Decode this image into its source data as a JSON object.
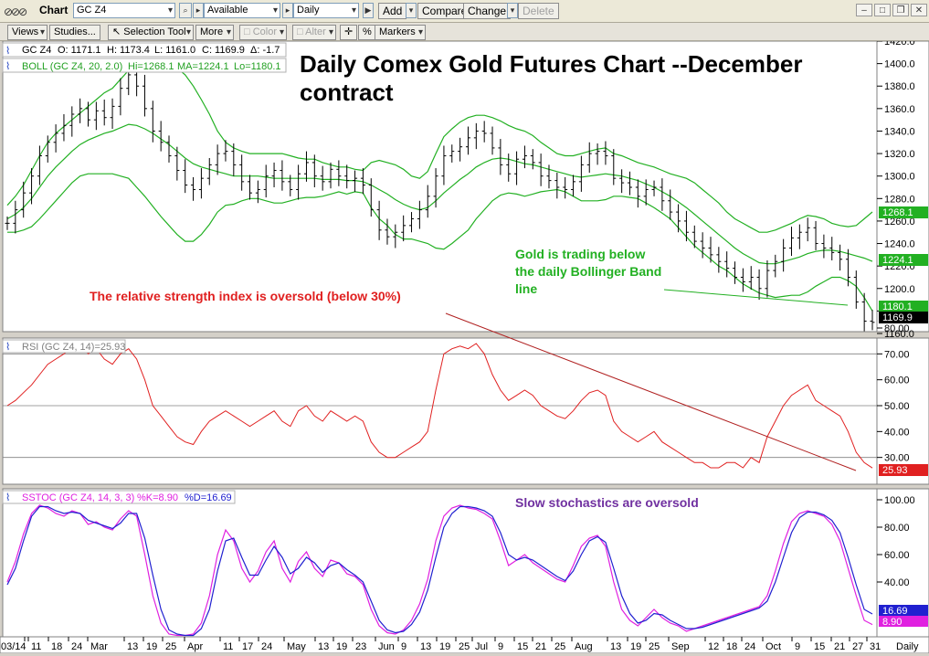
{
  "app": {
    "title": "Chart"
  },
  "toolbar1": {
    "symbol": "GC Z4",
    "available": "Available",
    "period": "Daily",
    "add": "Add",
    "compare": "Compare",
    "change": "Change",
    "delete": "Delete"
  },
  "toolbar2": {
    "views": "Views",
    "studies": "Studies...",
    "selection": "Selection Tool",
    "more": "More",
    "color": "Color",
    "alter": "Alter",
    "percent": "%",
    "markers": "Markers"
  },
  "price_panel": {
    "quote": {
      "symbol": "GC Z4",
      "open": "O: 1171.1",
      "high": "H: 1173.4",
      "low": "L: 1161.0",
      "close": "C: 1169.9",
      "change": "Δ: -1.7"
    },
    "boll": {
      "label": "BOLL (GC Z4, 20, 2.0)",
      "hi": "Hi=1268.1",
      "ma": "MA=1224.1",
      "lo": "Lo=1180.1"
    },
    "title_line1": "Daily Comex Gold Futures Chart --December",
    "title_line2": "contract",
    "note_bb_line1": "Gold is trading below",
    "note_bb_line2": "the daily Bollinger Band",
    "note_bb_line3": "line",
    "note_rsi": "The relative strength index is oversold (below 30%)",
    "last_labels": {
      "upper": "1268.1",
      "mid": "1224.1",
      "lower": "1180.1",
      "close": "1169.9"
    }
  },
  "rsi_panel": {
    "label": "RSI (GC Z4, 14)=25.93",
    "last": "25.93"
  },
  "sstoc_panel": {
    "label": "SSTOC (GC Z4, 14, 3, 3)",
    "k": "%K=8.90",
    "d": "%D=16.69",
    "note": "Slow stochastics are oversold",
    "last_k": "8.90",
    "last_d": "16.69"
  },
  "x_axis": {
    "ticks": [
      "03/14",
      "11",
      "18",
      "24",
      "Mar",
      "13",
      "19",
      "25",
      "Apr",
      "11",
      "17",
      "24",
      "May",
      "13",
      "19",
      "23",
      "Jun",
      "9",
      "13",
      "19",
      "25",
      "Jul",
      "9",
      "15",
      "21",
      "25",
      "Aug",
      "13",
      "19",
      "25",
      "Sep",
      "12",
      "18",
      "24",
      "Oct",
      "9",
      "15",
      "21",
      "27",
      "31",
      "Daily"
    ]
  },
  "colors": {
    "price": "#000000",
    "bands": "#22b022",
    "rsi": "#e02020",
    "k": "#e020e0",
    "d": "#2020d0",
    "note_red": "#e02020",
    "note_green": "#22b022",
    "note_purple": "#7030a0"
  },
  "chart_data": [
    {
      "type": "line",
      "title": "Daily Comex Gold Futures Chart --December contract",
      "x_start": "2014-03-14",
      "x_end": "2014-10-31",
      "ylim": [
        1160,
        1420
      ],
      "yticks": [
        1160,
        1180,
        1200,
        1220,
        1240,
        1260,
        1280,
        1300,
        1320,
        1340,
        1360,
        1380,
        1400,
        1420
      ],
      "series": [
        {
          "name": "GC Z4",
          "values": [
            1258,
            1270,
            1285,
            1300,
            1318,
            1330,
            1338,
            1345,
            1355,
            1360,
            1350,
            1358,
            1352,
            1362,
            1378,
            1390,
            1380,
            1360,
            1340,
            1330,
            1318,
            1305,
            1292,
            1288,
            1298,
            1310,
            1320,
            1322,
            1310,
            1295,
            1285,
            1288,
            1300,
            1305,
            1295,
            1288,
            1302,
            1312,
            1300,
            1295,
            1306,
            1300,
            1296,
            1298,
            1292,
            1270,
            1252,
            1246,
            1250,
            1256,
            1262,
            1270,
            1282,
            1300,
            1318,
            1322,
            1326,
            1334,
            1340,
            1338,
            1325,
            1310,
            1302,
            1315,
            1318,
            1312,
            1300,
            1296,
            1290,
            1288,
            1295,
            1310,
            1320,
            1322,
            1318,
            1298,
            1294,
            1290,
            1282,
            1288,
            1290,
            1278,
            1268,
            1260,
            1250,
            1242,
            1236,
            1230,
            1224,
            1218,
            1210,
            1206,
            1210,
            1200,
            1216,
            1224,
            1236,
            1245,
            1250,
            1254,
            1240,
            1236,
            1232,
            1226,
            1210,
            1188,
            1171,
            1169.9
          ]
        },
        {
          "name": "BOLL upper",
          "values": [
            1274,
            1282,
            1292,
            1305,
            1318,
            1330,
            1338,
            1344,
            1350,
            1356,
            1362,
            1368,
            1374,
            1378,
            1386,
            1394,
            1400,
            1402,
            1403,
            1402,
            1400,
            1396,
            1390,
            1380,
            1368,
            1355,
            1340,
            1330,
            1325,
            1322,
            1320,
            1320,
            1320,
            1320,
            1320,
            1318,
            1316,
            1315,
            1315,
            1312,
            1310,
            1308,
            1308,
            1306,
            1305,
            1312,
            1314,
            1312,
            1310,
            1306,
            1300,
            1298,
            1304,
            1320,
            1335,
            1342,
            1348,
            1352,
            1354,
            1354,
            1352,
            1349,
            1345,
            1342,
            1340,
            1336,
            1330,
            1325,
            1320,
            1318,
            1318,
            1320,
            1322,
            1324,
            1325,
            1320,
            1318,
            1315,
            1312,
            1310,
            1308,
            1305,
            1302,
            1300,
            1298,
            1294,
            1288,
            1282,
            1276,
            1268,
            1262,
            1258,
            1254,
            1250,
            1250,
            1252,
            1255,
            1258,
            1262,
            1265,
            1264,
            1262,
            1258,
            1256,
            1255,
            1256,
            1262,
            1268.1
          ]
        },
        {
          "name": "BOLL MA",
          "values": [
            1262,
            1266,
            1272,
            1280,
            1290,
            1300,
            1308,
            1315,
            1322,
            1328,
            1332,
            1335,
            1338,
            1340,
            1343,
            1346,
            1345,
            1342,
            1338,
            1333,
            1328,
            1322,
            1316,
            1311,
            1308,
            1306,
            1304,
            1302,
            1300,
            1300,
            1300,
            1300,
            1299,
            1298,
            1298,
            1298,
            1298,
            1298,
            1298,
            1297,
            1297,
            1297,
            1296,
            1296,
            1295,
            1292,
            1288,
            1284,
            1279,
            1275,
            1272,
            1270,
            1272,
            1278,
            1285,
            1291,
            1297,
            1302,
            1308,
            1312,
            1315,
            1316,
            1315,
            1313,
            1311,
            1310,
            1308,
            1306,
            1304,
            1302,
            1300,
            1299,
            1300,
            1301,
            1302,
            1301,
            1300,
            1298,
            1296,
            1293,
            1290,
            1286,
            1282,
            1277,
            1272,
            1266,
            1260,
            1254,
            1248,
            1242,
            1236,
            1231,
            1227,
            1223,
            1222,
            1222,
            1224,
            1226,
            1228,
            1231,
            1233,
            1234,
            1234,
            1233,
            1231,
            1229,
            1227,
            1224.1
          ]
        },
        {
          "name": "BOLL lower",
          "values": [
            1250,
            1250,
            1252,
            1255,
            1262,
            1270,
            1278,
            1286,
            1294,
            1300,
            1302,
            1302,
            1302,
            1302,
            1300,
            1298,
            1290,
            1282,
            1273,
            1264,
            1256,
            1248,
            1242,
            1242,
            1248,
            1257,
            1268,
            1274,
            1275,
            1278,
            1280,
            1280,
            1278,
            1276,
            1276,
            1278,
            1280,
            1281,
            1281,
            1282,
            1284,
            1286,
            1284,
            1286,
            1285,
            1272,
            1262,
            1256,
            1248,
            1244,
            1244,
            1242,
            1240,
            1236,
            1235,
            1240,
            1246,
            1252,
            1262,
            1270,
            1278,
            1283,
            1285,
            1284,
            1282,
            1284,
            1286,
            1287,
            1288,
            1286,
            1282,
            1278,
            1278,
            1278,
            1279,
            1282,
            1282,
            1281,
            1280,
            1276,
            1272,
            1267,
            1262,
            1254,
            1246,
            1238,
            1232,
            1226,
            1220,
            1216,
            1210,
            1204,
            1200,
            1196,
            1194,
            1192,
            1193,
            1194,
            1194,
            1197,
            1202,
            1206,
            1210,
            1210,
            1207,
            1202,
            1192,
            1180.1
          ]
        }
      ]
    },
    {
      "type": "line",
      "title": "RSI (GC Z4, 14)=25.93",
      "ylim": [
        20,
        80
      ],
      "yticks": [
        30,
        40,
        50,
        60,
        70,
        80
      ],
      "reference_lines": [
        30,
        50,
        70
      ],
      "series": [
        {
          "name": "RSI",
          "values": [
            50,
            52,
            55,
            58,
            62,
            66,
            68,
            70,
            72,
            74,
            70,
            72,
            68,
            66,
            70,
            72,
            68,
            60,
            50,
            46,
            42,
            38,
            36,
            35,
            40,
            44,
            46,
            48,
            46,
            44,
            42,
            44,
            46,
            48,
            44,
            42,
            48,
            50,
            46,
            44,
            48,
            46,
            44,
            46,
            44,
            36,
            32,
            30,
            30,
            32,
            34,
            36,
            40,
            56,
            70,
            72,
            73,
            72,
            74,
            70,
            62,
            56,
            52,
            54,
            56,
            54,
            50,
            48,
            46,
            45,
            48,
            52,
            55,
            56,
            54,
            44,
            40,
            38,
            36,
            38,
            40,
            36,
            34,
            32,
            30,
            28,
            28,
            26,
            26,
            28,
            28,
            26,
            30,
            28,
            38,
            44,
            50,
            54,
            56,
            58,
            52,
            50,
            48,
            46,
            40,
            32,
            28,
            25.93
          ]
        }
      ]
    },
    {
      "type": "line",
      "title": "SSTOC (GC Z4, 14, 3, 3)",
      "ylim": [
        0,
        110
      ],
      "yticks": [
        40,
        60,
        80,
        100
      ],
      "series": [
        {
          "name": "%K",
          "values": [
            40,
            55,
            75,
            90,
            96,
            94,
            90,
            88,
            92,
            90,
            82,
            84,
            80,
            78,
            86,
            92,
            88,
            60,
            30,
            10,
            2,
            1,
            1,
            2,
            10,
            30,
            60,
            78,
            70,
            50,
            40,
            48,
            62,
            70,
            50,
            40,
            55,
            62,
            50,
            44,
            56,
            54,
            46,
            44,
            38,
            20,
            8,
            3,
            2,
            5,
            12,
            24,
            42,
            70,
            88,
            94,
            96,
            94,
            93,
            90,
            86,
            70,
            52,
            56,
            60,
            54,
            50,
            46,
            42,
            40,
            52,
            66,
            72,
            74,
            66,
            40,
            20,
            12,
            8,
            14,
            20,
            14,
            10,
            8,
            4,
            6,
            8,
            10,
            12,
            14,
            16,
            18,
            20,
            22,
            30,
            48,
            68,
            84,
            90,
            92,
            90,
            88,
            82,
            70,
            50,
            30,
            12,
            8.9
          ]
        },
        {
          "name": "%D",
          "values": [
            38,
            50,
            70,
            88,
            95,
            95,
            92,
            90,
            91,
            90,
            85,
            83,
            81,
            79,
            83,
            90,
            90,
            72,
            45,
            20,
            5,
            2,
            1,
            1,
            6,
            20,
            48,
            70,
            72,
            58,
            45,
            45,
            56,
            66,
            58,
            46,
            50,
            58,
            54,
            47,
            52,
            54,
            49,
            45,
            40,
            26,
            12,
            5,
            3,
            4,
            9,
            18,
            34,
            58,
            80,
            90,
            95,
            95,
            94,
            92,
            88,
            76,
            60,
            56,
            58,
            56,
            52,
            48,
            44,
            41,
            48,
            60,
            70,
            73,
            69,
            50,
            30,
            17,
            10,
            12,
            17,
            16,
            12,
            9,
            6,
            6,
            7,
            9,
            11,
            13,
            15,
            17,
            19,
            21,
            26,
            40,
            58,
            76,
            87,
            91,
            91,
            89,
            85,
            76,
            58,
            38,
            20,
            16.69
          ]
        }
      ]
    }
  ]
}
